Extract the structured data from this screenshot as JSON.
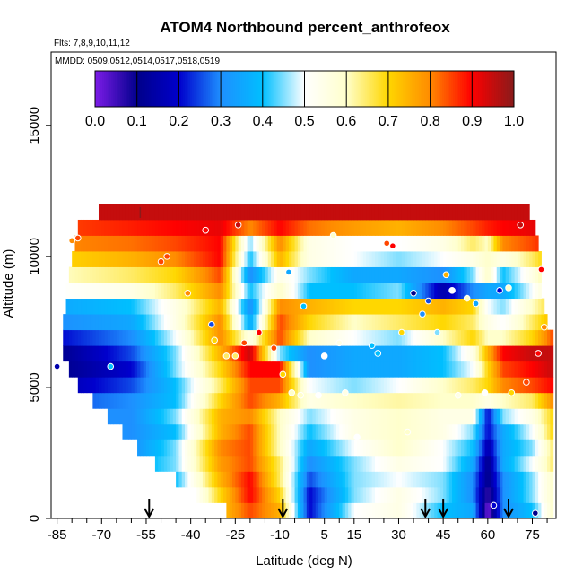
{
  "chart_data": {
    "type": "heatmap",
    "title": "ATOM4 Northbound percent_anthrofeox",
    "flights_label": "Flts: 7,8,9,10,11,12",
    "mmdd_label": "MMDD: 0509,0512,0514,0517,0518,0519",
    "xlabel": "Latitude (deg N)",
    "ylabel": "Altitude (m)",
    "xlim": [
      -87,
      83
    ],
    "ylim": [
      0,
      17800
    ],
    "x_ticks": [
      -85,
      -70,
      -55,
      -40,
      -25,
      -10,
      5,
      15,
      30,
      45,
      60,
      75
    ],
    "x_minor_ticks": [
      -80,
      -75,
      -65,
      -60,
      -50,
      -45,
      -35,
      -30,
      -20,
      -15,
      -5,
      0,
      10,
      20,
      25,
      35,
      40,
      50,
      55,
      65,
      70,
      80
    ],
    "y_ticks": [
      0,
      5000,
      10000,
      15000
    ],
    "colorbar": {
      "range": [
        0,
        1
      ],
      "ticks": [
        "0.0",
        "0.1",
        "0.2",
        "0.3",
        "0.4",
        "0.5",
        "0.6",
        "0.7",
        "0.8",
        "0.9",
        "1.0"
      ],
      "colors": [
        "#7a1be6",
        "#00008b",
        "#0000cd",
        "#1e90ff",
        "#00bfff",
        "#ffffff",
        "#ffffcc",
        "#ffd700",
        "#ff8c00",
        "#ff0000",
        "#8b1a1a"
      ]
    },
    "arrow_latitudes": [
      -54,
      -9,
      39,
      45,
      67
    ],
    "bottom_marker_latitude": -57,
    "altitude_levels": [
      0,
      600,
      1200,
      1800,
      2400,
      3000,
      3600,
      4200,
      4800,
      5400,
      6000,
      6600,
      7200,
      7800,
      8400,
      9000,
      9600,
      10200,
      10800,
      11400
    ],
    "latitude_extent_by_level": [
      [
        -28,
        82
      ],
      [
        -38,
        82
      ],
      [
        -45,
        82
      ],
      [
        -52,
        82
      ],
      [
        -58,
        82
      ],
      [
        -63,
        82
      ],
      [
        -68,
        82
      ],
      [
        -73,
        82
      ],
      [
        -78,
        82
      ],
      [
        -81,
        82
      ],
      [
        -83,
        82
      ],
      [
        -83,
        82
      ],
      [
        -83,
        80
      ],
      [
        -82,
        79
      ],
      [
        -82,
        78
      ],
      [
        -81,
        78
      ],
      [
        -80,
        78
      ],
      [
        -79,
        77
      ],
      [
        -78,
        76
      ],
      [
        -71,
        74
      ]
    ],
    "field_description_lat_anchors": [
      -85,
      -60,
      -45,
      -30,
      -20,
      -10,
      0,
      15,
      30,
      45,
      55,
      60,
      65,
      75,
      82
    ],
    "field_values": [
      [
        0.4,
        0.35,
        0.3,
        0.72,
        0.85,
        0.75,
        0.2,
        0.5,
        0.55,
        0.4,
        0.35,
        0.0,
        0.3,
        0.4,
        0.6
      ],
      [
        0.4,
        0.35,
        0.35,
        0.7,
        0.9,
        0.7,
        0.2,
        0.45,
        0.55,
        0.45,
        0.3,
        0.05,
        0.3,
        0.45,
        0.6
      ],
      [
        0.4,
        0.35,
        0.4,
        0.75,
        0.9,
        0.65,
        0.25,
        0.45,
        0.5,
        0.45,
        0.3,
        0.1,
        0.3,
        0.45,
        0.6
      ],
      [
        0.4,
        0.35,
        0.45,
        0.78,
        0.85,
        0.65,
        0.3,
        0.45,
        0.55,
        0.5,
        0.35,
        0.1,
        0.35,
        0.5,
        0.65
      ],
      [
        0.4,
        0.3,
        0.45,
        0.8,
        0.85,
        0.6,
        0.35,
        0.5,
        0.6,
        0.5,
        0.4,
        0.15,
        0.35,
        0.45,
        0.65
      ],
      [
        0.35,
        0.3,
        0.4,
        0.75,
        0.85,
        0.6,
        0.4,
        0.55,
        0.6,
        0.55,
        0.45,
        0.2,
        0.35,
        0.5,
        0.7
      ],
      [
        0.3,
        0.3,
        0.45,
        0.75,
        0.8,
        0.6,
        0.45,
        0.55,
        0.6,
        0.55,
        0.55,
        0.2,
        0.45,
        0.55,
        0.7
      ],
      [
        0.25,
        0.3,
        0.4,
        0.7,
        0.85,
        0.75,
        0.55,
        0.6,
        0.62,
        0.6,
        0.6,
        0.55,
        0.6,
        0.65,
        0.8
      ],
      [
        0.15,
        0.25,
        0.4,
        0.65,
        0.85,
        0.85,
        0.5,
        0.45,
        0.5,
        0.6,
        0.65,
        0.7,
        0.8,
        0.85,
        0.9
      ],
      [
        0.1,
        0.2,
        0.45,
        0.7,
        0.9,
        0.9,
        0.3,
        0.35,
        0.35,
        0.4,
        0.5,
        0.7,
        0.85,
        0.9,
        0.95
      ],
      [
        0.1,
        0.25,
        0.45,
        0.75,
        0.95,
        0.45,
        0.3,
        0.35,
        0.35,
        0.4,
        0.55,
        0.75,
        0.9,
        0.95,
        0.95
      ],
      [
        0.2,
        0.3,
        0.5,
        0.8,
        0.55,
        0.85,
        0.6,
        0.5,
        0.45,
        0.6,
        0.7,
        0.6,
        0.6,
        0.7,
        0.85
      ],
      [
        0.3,
        0.35,
        0.55,
        0.8,
        0.35,
        0.85,
        0.7,
        0.6,
        0.65,
        0.7,
        0.65,
        0.55,
        0.5,
        0.65,
        0.75
      ],
      [
        0.35,
        0.4,
        0.55,
        0.75,
        0.3,
        0.8,
        0.75,
        0.7,
        0.7,
        0.75,
        0.7,
        0.5,
        0.45,
        0.6,
        0.7
      ],
      [
        0.5,
        0.55,
        0.65,
        0.8,
        0.4,
        0.6,
        0.4,
        0.4,
        0.45,
        0.15,
        0.3,
        0.35,
        0.35,
        0.5,
        0.65
      ],
      [
        0.6,
        0.65,
        0.7,
        0.85,
        0.3,
        0.55,
        0.45,
        0.35,
        0.35,
        0.3,
        0.45,
        0.6,
        0.4,
        0.55,
        0.7
      ],
      [
        0.7,
        0.75,
        0.8,
        0.9,
        0.4,
        0.75,
        0.55,
        0.5,
        0.45,
        0.5,
        0.55,
        0.6,
        0.55,
        0.65,
        0.75
      ],
      [
        0.8,
        0.82,
        0.85,
        0.9,
        0.45,
        0.8,
        0.55,
        0.5,
        0.5,
        0.55,
        0.65,
        0.6,
        0.8,
        0.85,
        0.9
      ],
      [
        0.85,
        0.88,
        0.9,
        0.92,
        0.8,
        0.9,
        0.82,
        0.78,
        0.75,
        0.8,
        0.85,
        0.88,
        0.9,
        0.92,
        0.93
      ],
      [
        0.95,
        0.95,
        0.95,
        0.95,
        0.95,
        0.95,
        0.95,
        0.95,
        0.95,
        0.95,
        0.95,
        0.95,
        0.95,
        0.95,
        0.95
      ]
    ],
    "observations": [
      [
        -85,
        5800,
        0.15
      ],
      [
        -80,
        10600,
        0.8
      ],
      [
        -78,
        10700,
        0.85
      ],
      [
        -67,
        5800,
        0.4
      ],
      [
        -50,
        9800,
        0.85
      ],
      [
        -48,
        10000,
        0.85
      ],
      [
        -41,
        8600,
        0.8
      ],
      [
        -35,
        11000,
        0.9
      ],
      [
        -33,
        7400,
        0.25
      ],
      [
        -32,
        6800,
        0.7
      ],
      [
        -28,
        6200,
        0.65
      ],
      [
        -25,
        6200,
        0.65
      ],
      [
        -24,
        11200,
        0.95
      ],
      [
        -22,
        6700,
        0.85
      ],
      [
        -17,
        7100,
        0.9
      ],
      [
        -12,
        6500,
        0.85
      ],
      [
        -9,
        5500,
        0.7
      ],
      [
        -7,
        9400,
        0.35
      ],
      [
        -6,
        4800,
        0.6
      ],
      [
        -3,
        4700,
        0.6
      ],
      [
        -2,
        8100,
        0.4
      ],
      [
        3,
        4700,
        0.5
      ],
      [
        5,
        6200,
        0.5
      ],
      [
        8,
        10800,
        0.6
      ],
      [
        10,
        6700,
        0.55
      ],
      [
        12,
        4800,
        0.55
      ],
      [
        16,
        3100,
        0.5
      ],
      [
        21,
        6600,
        0.4
      ],
      [
        23,
        6300,
        0.4
      ],
      [
        26,
        10500,
        0.85
      ],
      [
        28,
        10400,
        0.9
      ],
      [
        31,
        7100,
        0.7
      ],
      [
        33,
        3300,
        0.6
      ],
      [
        35,
        8600,
        0.1
      ],
      [
        38,
        7800,
        0.3
      ],
      [
        40,
        8300,
        0.25
      ],
      [
        43,
        7100,
        0.45
      ],
      [
        46,
        9300,
        0.75
      ],
      [
        48,
        8700,
        0.5
      ],
      [
        50,
        4700,
        0.55
      ],
      [
        53,
        8400,
        0.6
      ],
      [
        56,
        8200,
        0.35
      ],
      [
        59,
        4800,
        0.5
      ],
      [
        62,
        500,
        0.2
      ],
      [
        64,
        8700,
        0.2
      ],
      [
        67,
        8800,
        0.6
      ],
      [
        68,
        4800,
        0.7
      ],
      [
        71,
        11200,
        0.95
      ],
      [
        73,
        5200,
        0.85
      ],
      [
        77,
        6300,
        0.9
      ],
      [
        78,
        9500,
        0.9
      ],
      [
        79,
        7300,
        0.8
      ],
      [
        76,
        200,
        0.1
      ]
    ]
  }
}
